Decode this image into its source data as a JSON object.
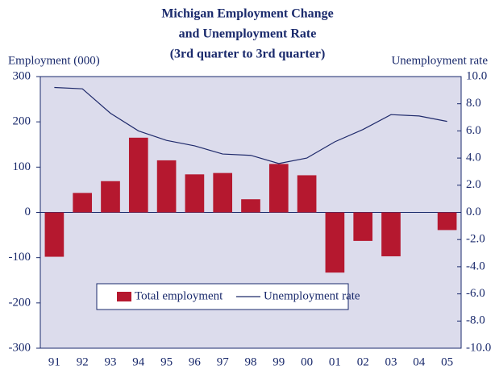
{
  "chart_data": {
    "type": "bar-line",
    "title": [
      "Michigan Employment Change",
      "and Unemployment Rate",
      "(3rd quarter to 3rd quarter)"
    ],
    "y_label": "Employment (000)",
    "y2_label": "Unemployment rate",
    "categories": [
      "91",
      "92",
      "93",
      "94",
      "95",
      "96",
      "97",
      "98",
      "99",
      "00",
      "01",
      "02",
      "03",
      "04",
      "05"
    ],
    "series": [
      {
        "name": "Total employment",
        "type": "bar",
        "color": "#b5182f",
        "values": [
          -98,
          43,
          69,
          165,
          115,
          84,
          87,
          29,
          107,
          82,
          -133,
          -63,
          -97,
          0,
          -39
        ]
      },
      {
        "name": "Unemployment rate",
        "type": "line",
        "axis": "y2",
        "color": "#1f2a6b",
        "values": [
          9.2,
          9.1,
          7.3,
          6.0,
          5.3,
          4.9,
          4.3,
          4.2,
          3.6,
          4.0,
          5.2,
          6.1,
          7.2,
          7.1,
          6.7
        ]
      }
    ],
    "ylim": [
      -300,
      300
    ],
    "yticks": [
      -300,
      -200,
      -100,
      0,
      100,
      200,
      300
    ],
    "y2lim": [
      -10,
      10
    ],
    "y2ticks": [
      {
        "value": -10,
        "label": "-10.0"
      },
      {
        "value": -8,
        "label": "-8.0"
      },
      {
        "value": -6,
        "label": "-6.0"
      },
      {
        "value": -4,
        "label": "-4.0"
      },
      {
        "value": -2,
        "label": "-2.0"
      },
      {
        "value": 0,
        "label": "0.0"
      },
      {
        "value": 2,
        "label": "2.0"
      },
      {
        "value": 4,
        "label": "4.0"
      },
      {
        "value": 6,
        "label": "6.0"
      },
      {
        "value": 8,
        "label": "8.0"
      },
      {
        "value": 10,
        "label": "10.0"
      }
    ],
    "legend": "bottom",
    "background": "#dcdcec"
  }
}
